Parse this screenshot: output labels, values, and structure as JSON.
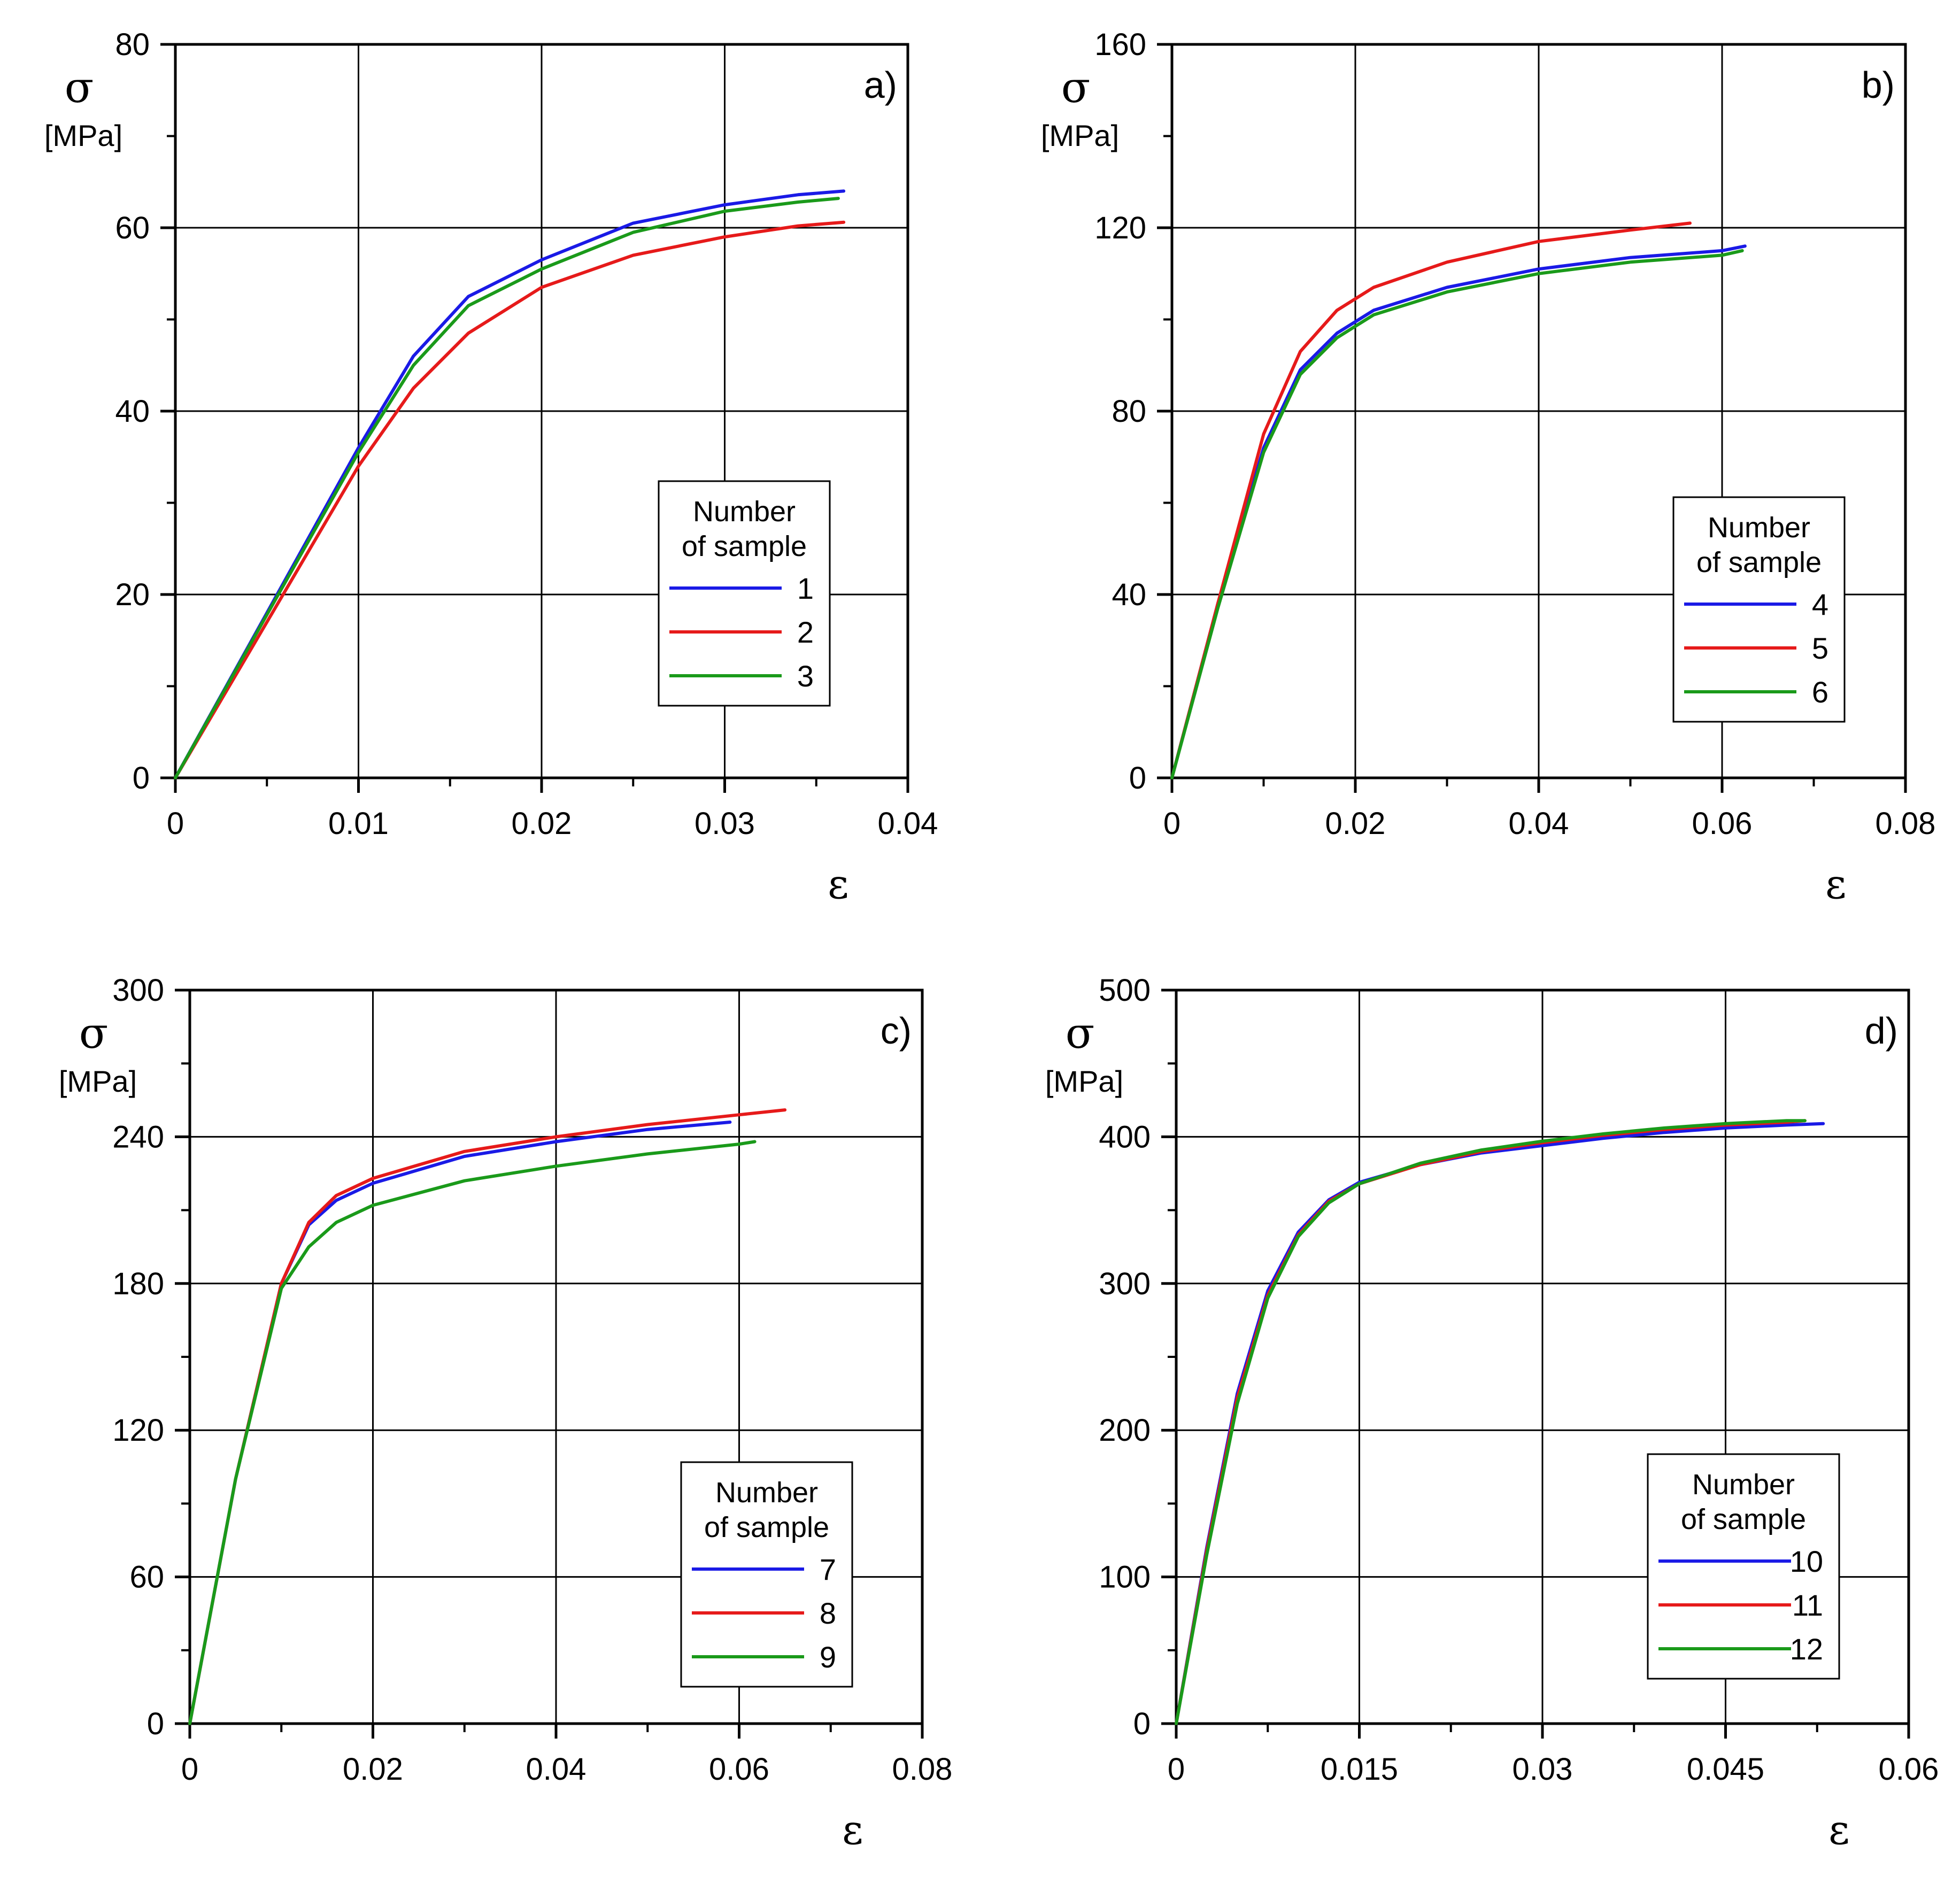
{
  "chart_data": [
    {
      "panel_label": "a)",
      "type": "line",
      "ylabel_symbol": "σ",
      "ylabel_unit": "[MPa]",
      "xlabel": "ε",
      "xlim": [
        0,
        0.04
      ],
      "ylim": [
        0,
        80
      ],
      "xticks": [
        "0",
        "0.01",
        "0.02",
        "0.03",
        "0.04"
      ],
      "yticks": [
        "0",
        "20",
        "40",
        "60",
        "80"
      ],
      "grid": true,
      "legend_title_1": "Number",
      "legend_title_2": "of sample",
      "legend_position": "center-right",
      "series": [
        {
          "name": "1",
          "color": "#1a1ae6",
          "x": [
            0,
            0.005,
            0.01,
            0.013,
            0.016,
            0.02,
            0.025,
            0.03,
            0.034,
            0.0365
          ],
          "y": [
            0,
            18,
            36,
            46,
            52.5,
            56.5,
            60.5,
            62.5,
            63.6,
            64
          ]
        },
        {
          "name": "2",
          "color": "#e61a1a",
          "x": [
            0,
            0.005,
            0.01,
            0.013,
            0.016,
            0.02,
            0.025,
            0.03,
            0.034,
            0.0365
          ],
          "y": [
            0,
            17,
            34,
            42.5,
            48.5,
            53.5,
            57,
            59,
            60.2,
            60.6
          ]
        },
        {
          "name": "3",
          "color": "#1a9a1a",
          "x": [
            0,
            0.005,
            0.01,
            0.013,
            0.016,
            0.02,
            0.025,
            0.03,
            0.034,
            0.0362
          ],
          "y": [
            0,
            17.8,
            35.5,
            45,
            51.5,
            55.5,
            59.5,
            61.8,
            62.8,
            63.2
          ]
        }
      ]
    },
    {
      "panel_label": "b)",
      "type": "line",
      "ylabel_symbol": "σ",
      "ylabel_unit": "[MPa]",
      "xlabel": "ε",
      "xlim": [
        0,
        0.08
      ],
      "ylim": [
        0,
        160
      ],
      "xticks": [
        "0",
        "0.02",
        "0.04",
        "0.06",
        "0.08"
      ],
      "yticks": [
        "0",
        "40",
        "80",
        "120",
        "160"
      ],
      "grid": true,
      "legend_title_1": "Number",
      "legend_title_2": "of sample",
      "legend_position": "center-right",
      "series": [
        {
          "name": "4",
          "color": "#1a1ae6",
          "x": [
            0,
            0.005,
            0.01,
            0.014,
            0.018,
            0.022,
            0.03,
            0.04,
            0.05,
            0.06,
            0.0625
          ],
          "y": [
            0,
            38,
            72,
            89,
            97,
            102,
            107,
            111,
            113.5,
            115,
            116
          ]
        },
        {
          "name": "5",
          "color": "#e61a1a",
          "x": [
            0,
            0.005,
            0.01,
            0.014,
            0.018,
            0.022,
            0.03,
            0.04,
            0.05,
            0.0565
          ],
          "y": [
            0,
            38,
            75,
            93,
            102,
            107,
            112.5,
            117,
            119.5,
            121
          ]
        },
        {
          "name": "6",
          "color": "#1a9a1a",
          "x": [
            0,
            0.005,
            0.01,
            0.014,
            0.018,
            0.022,
            0.03,
            0.04,
            0.05,
            0.06,
            0.0622
          ],
          "y": [
            0,
            37,
            71,
            88,
            96,
            101,
            106,
            110,
            112.5,
            114,
            115
          ]
        }
      ]
    },
    {
      "panel_label": "c)",
      "type": "line",
      "ylabel_symbol": "σ",
      "ylabel_unit": "[MPa]",
      "xlabel": "ε",
      "xlim": [
        0,
        0.08
      ],
      "ylim": [
        0,
        300
      ],
      "xticks": [
        "0",
        "0.02",
        "0.04",
        "0.06",
        "0.08"
      ],
      "yticks": [
        "0",
        "60",
        "120",
        "180",
        "240",
        "300"
      ],
      "grid": true,
      "legend_title_1": "Number",
      "legend_title_2": "of sample",
      "legend_position": "bottom-right",
      "series": [
        {
          "name": "7",
          "color": "#1a1ae6",
          "x": [
            0,
            0.005,
            0.01,
            0.013,
            0.016,
            0.02,
            0.03,
            0.04,
            0.05,
            0.059
          ],
          "y": [
            0,
            100,
            180,
            204,
            214,
            221,
            232,
            238,
            243,
            246
          ]
        },
        {
          "name": "8",
          "color": "#e61a1a",
          "x": [
            0,
            0.005,
            0.01,
            0.013,
            0.016,
            0.02,
            0.03,
            0.04,
            0.05,
            0.06,
            0.065
          ],
          "y": [
            0,
            100,
            180,
            205,
            216,
            223,
            234,
            240,
            245,
            249,
            251
          ]
        },
        {
          "name": "9",
          "color": "#1a9a1a",
          "x": [
            0,
            0.005,
            0.01,
            0.013,
            0.016,
            0.02,
            0.03,
            0.04,
            0.05,
            0.06,
            0.0617
          ],
          "y": [
            0,
            100,
            178,
            195,
            205,
            212,
            222,
            228,
            233,
            237,
            238
          ]
        }
      ]
    },
    {
      "panel_label": "d)",
      "type": "line",
      "ylabel_symbol": "σ",
      "ylabel_unit": "[MPa]",
      "xlabel": "ε",
      "xlim": [
        0,
        0.06
      ],
      "ylim": [
        0,
        500
      ],
      "xticks": [
        "0",
        "0.015",
        "0.03",
        "0.045",
        "0.06"
      ],
      "yticks": [
        "0",
        "100",
        "200",
        "300",
        "400",
        "500"
      ],
      "grid": true,
      "legend_title_1": "Number",
      "legend_title_2": "of sample",
      "legend_position": "bottom-right",
      "series": [
        {
          "name": "10",
          "color": "#1a1ae6",
          "x": [
            0,
            0.0025,
            0.005,
            0.0075,
            0.01,
            0.0125,
            0.015,
            0.02,
            0.025,
            0.03,
            0.035,
            0.04,
            0.045,
            0.05,
            0.053
          ],
          "y": [
            0,
            120,
            225,
            295,
            335,
            357,
            369,
            381,
            389,
            394,
            399,
            403,
            406,
            408,
            409
          ]
        },
        {
          "name": "11",
          "color": "#e61a1a",
          "x": [
            0,
            0.0025,
            0.005,
            0.0075,
            0.01,
            0.0125,
            0.015,
            0.02,
            0.025,
            0.03,
            0.035,
            0.04,
            0.045,
            0.05,
            0.0515
          ],
          "y": [
            0,
            118,
            222,
            292,
            333,
            356,
            368,
            381,
            390,
            396,
            401,
            405,
            408,
            410,
            411
          ]
        },
        {
          "name": "12",
          "color": "#1a9a1a",
          "x": [
            0,
            0.0025,
            0.005,
            0.0075,
            0.01,
            0.0125,
            0.015,
            0.02,
            0.025,
            0.03,
            0.035,
            0.04,
            0.045,
            0.05,
            0.0515
          ],
          "y": [
            0,
            115,
            218,
            290,
            332,
            355,
            368,
            382,
            391,
            397,
            402,
            406,
            409,
            411,
            411
          ]
        }
      ]
    }
  ]
}
